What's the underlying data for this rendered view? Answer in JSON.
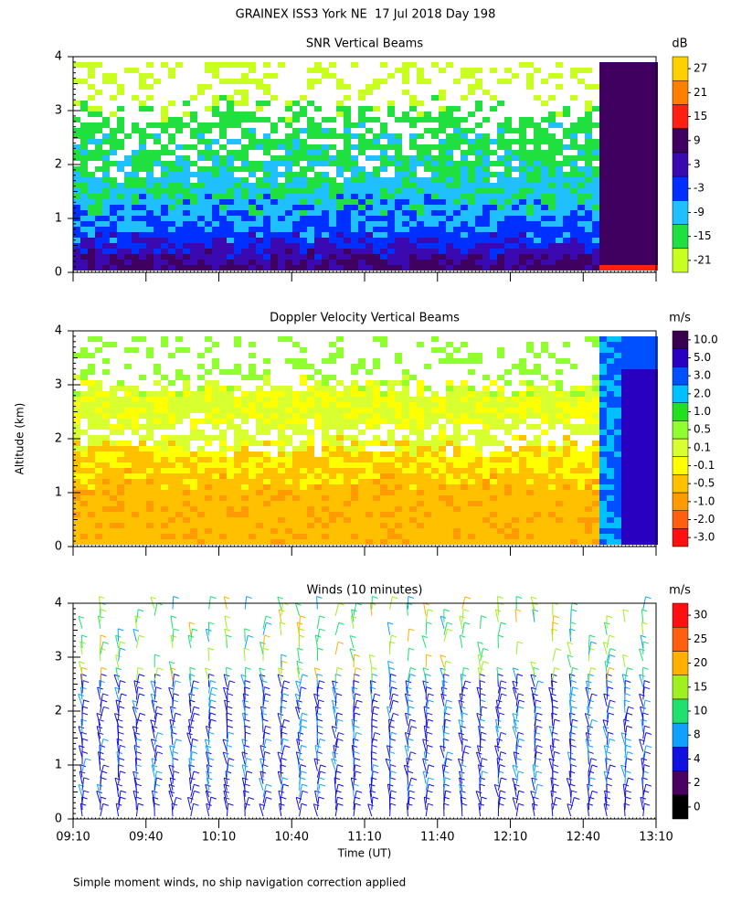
{
  "title": "GRAINEX ISS3 York NE  17 Jul 2018 Day 198",
  "footnote": "Simple moment winds, no ship navigation correction applied",
  "chart_data": [
    {
      "type": "heatmap",
      "title": "SNR Vertical Beams",
      "unit": "dB",
      "ylim": [
        0,
        4
      ],
      "yticks": [
        0,
        1,
        2,
        3,
        4
      ],
      "colorbar": {
        "ticks": [
          -21,
          -15,
          -9,
          -3,
          3,
          9,
          15,
          21,
          27
        ],
        "colors": [
          "#c8ff20",
          "#20e040",
          "#20c0ff",
          "#0030ff",
          "#3a0ab0",
          "#400060",
          "#ff2010",
          "#ff8000",
          "#ffd000"
        ]
      }
    },
    {
      "type": "heatmap",
      "title": "Doppler Velocity Vertical Beams",
      "unit": "m/s",
      "ylabel": "Altitude (km)",
      "ylim": [
        0,
        4
      ],
      "yticks": [
        0,
        1,
        2,
        3,
        4
      ],
      "colorbar": {
        "ticks": [
          {
            "value": -3,
            "label": "-3.0"
          },
          {
            "value": -2,
            "label": "-2.0"
          },
          {
            "value": -1,
            "label": "-1.0"
          },
          -0.5,
          -0.1,
          0.1,
          0.5,
          {
            "value": 1,
            "label": "1.0"
          },
          {
            "value": 2,
            "label": "2.0"
          },
          {
            "value": 3,
            "label": "3.0"
          },
          {
            "value": 5,
            "label": "5.0"
          },
          {
            "value": 10,
            "label": "10.0"
          }
        ],
        "colors": [
          "#ff1010",
          "#ff6010",
          "#ff9a00",
          "#ffc000",
          "#ffff00",
          "#d8ff30",
          "#90ff30",
          "#20e020",
          "#00c0ff",
          "#0050ff",
          "#2a00c0",
          "#3a0050"
        ]
      }
    },
    {
      "type": "barbs",
      "title": "Winds (10 minutes)",
      "unit": "m/s",
      "xlabel": "Time (UT)",
      "ylim": [
        0,
        4
      ],
      "yticks": [
        0,
        1,
        2,
        3,
        4
      ],
      "xticks": [
        "09:10",
        "09:40",
        "10:10",
        "10:40",
        "11:10",
        "11:40",
        "12:10",
        "12:40",
        "13:10"
      ],
      "colorbar": {
        "ticks": [
          0,
          2,
          4,
          8,
          10,
          15,
          20,
          25,
          30
        ],
        "colors": [
          "#000000",
          "#4a0060",
          "#1010e0",
          "#10a0ff",
          "#20e070",
          "#a0f020",
          "#ffb000",
          "#ff6010",
          "#ff1010"
        ]
      }
    }
  ]
}
